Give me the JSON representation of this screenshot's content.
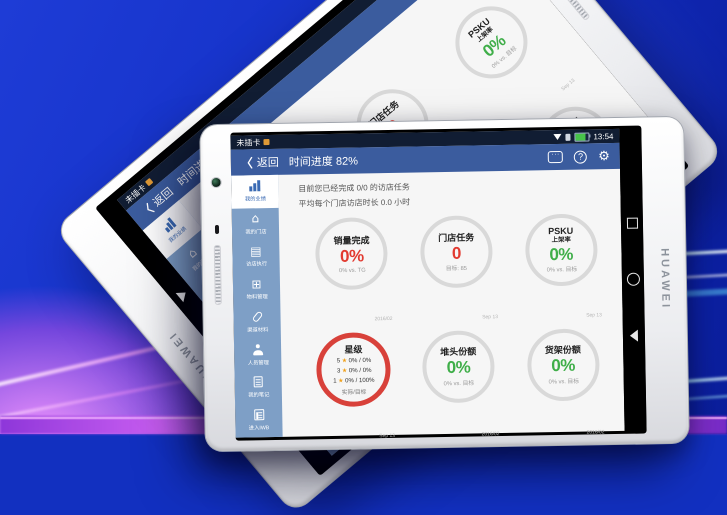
{
  "device": {
    "brand": "HUAWEI"
  },
  "status_bar": {
    "carrier": "未插卡",
    "time": "13:54"
  },
  "header": {
    "back_chevron": "〈",
    "back_label": "返回",
    "progress_label": "时间进度 82%",
    "chat_dots": "···",
    "help_glyph": "?",
    "gear_glyph": "⚙"
  },
  "messages": {
    "line1": "目前您已经完成 0/0 的访店任务",
    "line2": "平均每个门店访店时长 0.0 小时"
  },
  "sidebar": {
    "items": [
      {
        "label": "我的业绩",
        "icon": "chart-icon",
        "active": true
      },
      {
        "label": "我的门店",
        "icon": "store-icon",
        "glyph": "⌂"
      },
      {
        "label": "访店执行",
        "icon": "clipboard-icon",
        "glyph": "▤"
      },
      {
        "label": "物料管理",
        "icon": "grid-icon",
        "glyph": "⊞"
      },
      {
        "label": "渠道材料",
        "icon": "paperclip-icon"
      },
      {
        "label": "人员管理",
        "icon": "person-icon"
      },
      {
        "label": "我的笔记",
        "icon": "notebook-icon"
      },
      {
        "label": "进入IWB",
        "icon": "document-icon"
      }
    ]
  },
  "kpis": [
    {
      "title": "销量完成",
      "value": "0%",
      "value_color": "#e23b31",
      "sub": "0% vs. TG",
      "date": "2016/02",
      "ring": "gray"
    },
    {
      "title": "门店任务",
      "value": "0",
      "value_color": "#e23b31",
      "sub": "目标: 85",
      "date": "Sep 13",
      "ring": "gray"
    },
    {
      "title": "PSKU",
      "subtitle": "上架率",
      "value": "0%",
      "value_color": "#3fae49",
      "sub": "0% vs. 目标",
      "date": "Sep 13",
      "ring": "gray"
    },
    {
      "title": "星级",
      "ring": "red",
      "star_glyph": "★",
      "rows": [
        {
          "n": "5",
          "v": "0% / 0%"
        },
        {
          "n": "3",
          "v": "0% / 0%"
        },
        {
          "n": "1",
          "v": "0% / 100%"
        }
      ],
      "footer": "实际/目标",
      "date": "Sep 13"
    },
    {
      "title": "堆头份额",
      "value": "0%",
      "value_color": "#3fae49",
      "sub": "0% vs. 目标",
      "date": "2016/02",
      "ring": "gray"
    },
    {
      "title": "货架份额",
      "value": "0%",
      "value_color": "#3fae49",
      "sub": "0% vs. 目标",
      "date": "2016/02",
      "ring": "gray"
    }
  ],
  "colors": {
    "header_blue": "#3b5c9e",
    "statusbar_navy": "#111d33",
    "sidebar_blue": "#7e9fc6",
    "active_item_blue": "#3a6ab3",
    "ring_gray": "#d9d9d9",
    "ring_red": "#d8413a",
    "value_red": "#e23b31",
    "value_green": "#3fae49",
    "star_orange": "#f0a11b",
    "battery_green": "#47c34a"
  }
}
